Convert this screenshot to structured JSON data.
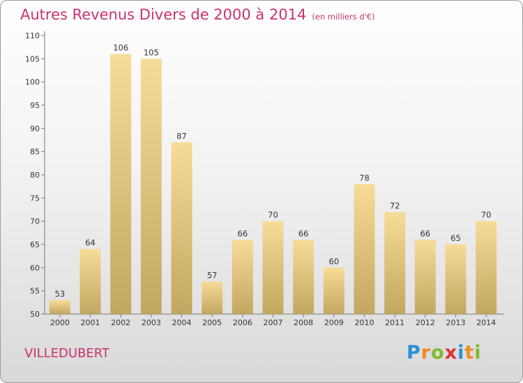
{
  "title": "Autres Revenus Divers de 2000 à 2014",
  "subtitle": "(en milliers d'€)",
  "location": "VILLEDUBERT",
  "logo": {
    "letters": [
      "P",
      "r",
      "o",
      "x",
      "i",
      "t",
      "i"
    ],
    "colors": [
      "#2a8fd6",
      "#f08a1c",
      "#7dbb2e",
      "#e0302f",
      "#2a8fd6",
      "#f08a1c",
      "#7dbb2e"
    ]
  },
  "colors": {
    "bar_light": "#f7dc98",
    "bar_dark": "#c2a760",
    "title": "#c8336d"
  },
  "chart_data": {
    "type": "bar",
    "categories": [
      "2000",
      "2001",
      "2002",
      "2003",
      "2004",
      "2005",
      "2006",
      "2007",
      "2008",
      "2009",
      "2010",
      "2011",
      "2012",
      "2013",
      "2014"
    ],
    "values": [
      53,
      64,
      106,
      105,
      87,
      57,
      66,
      70,
      66,
      60,
      78,
      72,
      66,
      65,
      70
    ],
    "ylim": [
      50,
      110
    ],
    "yticks": [
      50,
      55,
      60,
      65,
      70,
      75,
      80,
      85,
      90,
      95,
      100,
      105,
      110
    ],
    "grid": false
  }
}
